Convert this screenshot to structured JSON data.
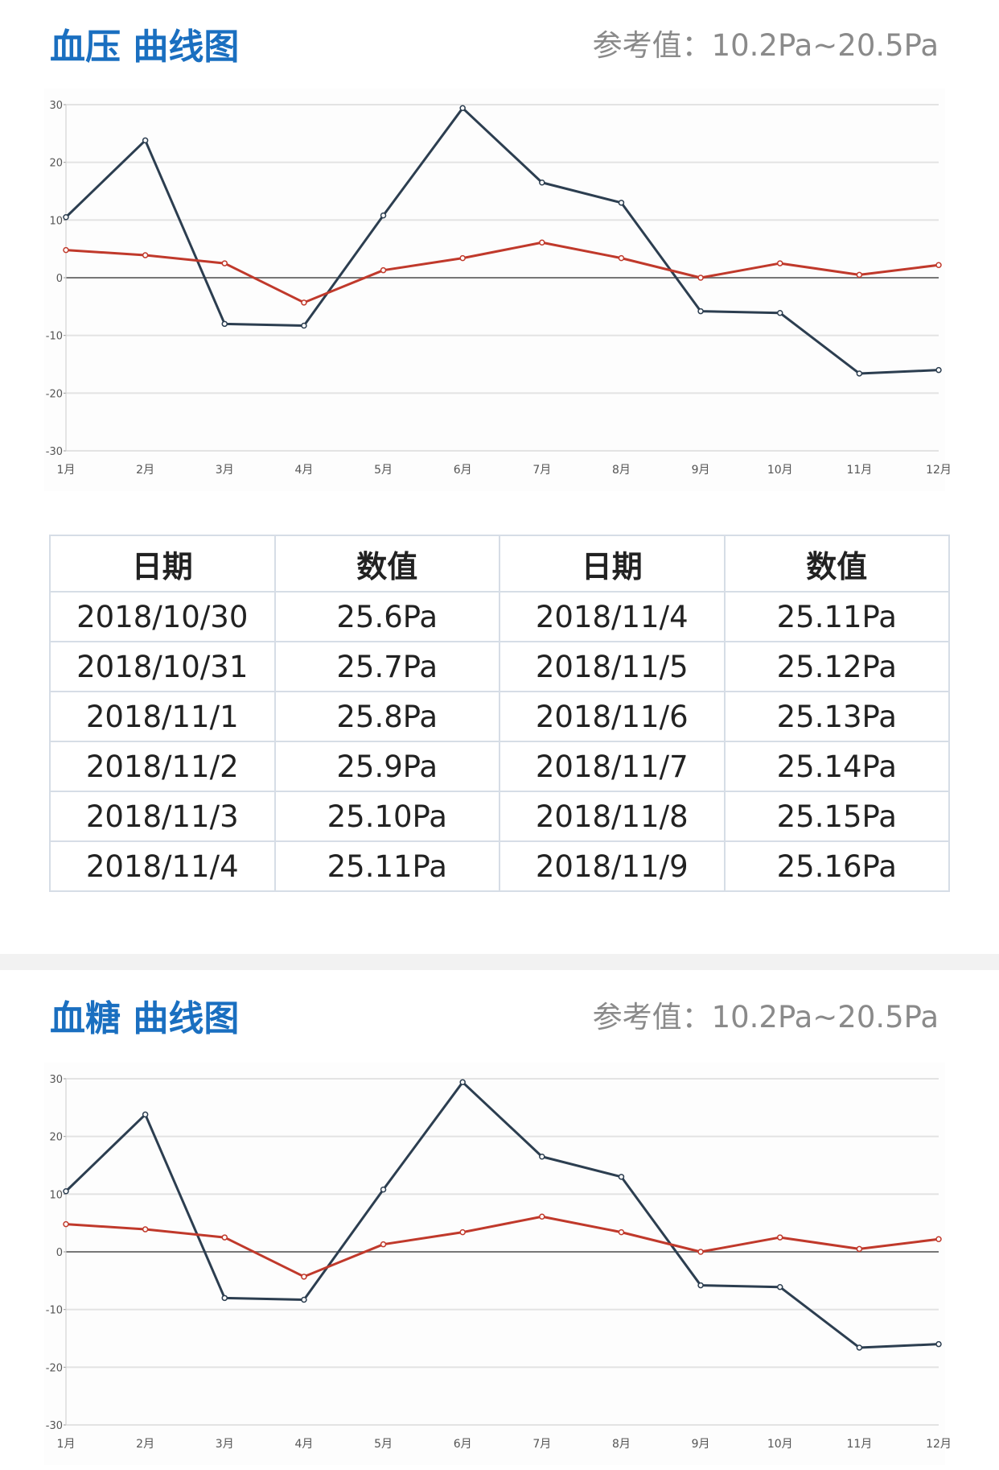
{
  "sections": [
    {
      "title": "血压 曲线图",
      "reference": "参考值：10.2Pa~20.5Pa"
    },
    {
      "title": "血糖 曲线图",
      "reference": "参考值：10.2Pa~20.5Pa"
    }
  ],
  "table": {
    "headers": [
      "日期",
      "数值",
      "日期",
      "数值"
    ],
    "rows": [
      [
        "2018/10/30",
        "25.6Pa",
        "2018/11/4",
        "25.11Pa"
      ],
      [
        "2018/10/31",
        "25.7Pa",
        "2018/11/5",
        "25.12Pa"
      ],
      [
        "2018/11/1",
        "25.8Pa",
        "2018/11/6",
        "25.13Pa"
      ],
      [
        "2018/11/2",
        "25.9Pa",
        "2018/11/7",
        "25.14Pa"
      ],
      [
        "2018/11/3",
        "25.10Pa",
        "2018/11/8",
        "25.15Pa"
      ],
      [
        "2018/11/4",
        "25.11Pa",
        "2018/11/9",
        "25.16Pa"
      ]
    ]
  },
  "chart_data": [
    {
      "type": "line",
      "title": "血压 曲线图",
      "categories": [
        "1月",
        "2月",
        "3月",
        "4月",
        "5月",
        "6月",
        "7月",
        "8月",
        "9月",
        "10月",
        "11月",
        "12月"
      ],
      "yticks": [
        "30",
        "20",
        "10",
        "0",
        "-10",
        "-20",
        "-30"
      ],
      "ylim": [
        -30,
        30
      ],
      "grid": true,
      "series": [
        {
          "color": "#2c3e50",
          "values": [
            10.5,
            23.8,
            -8,
            -8.3,
            10.8,
            29.4,
            16.5,
            13,
            -5.8,
            -6.1,
            -16.6,
            -16
          ]
        },
        {
          "color": "#c0392b",
          "values": [
            4.8,
            3.9,
            2.5,
            -4.3,
            1.3,
            3.4,
            6.1,
            3.4,
            0,
            2.5,
            0.5,
            2.2
          ]
        }
      ]
    },
    {
      "type": "line",
      "title": "血糖 曲线图",
      "categories": [
        "1月",
        "2月",
        "3月",
        "4月",
        "5月",
        "6月",
        "7月",
        "8月",
        "9月",
        "10月",
        "11月",
        "12月"
      ],
      "yticks": [
        "30",
        "20",
        "10",
        "0",
        "-10",
        "-20",
        "-30"
      ],
      "ylim": [
        -30,
        30
      ],
      "grid": true,
      "series": [
        {
          "color": "#2c3e50",
          "values": [
            10.5,
            23.8,
            -8,
            -8.3,
            10.8,
            29.4,
            16.5,
            13,
            -5.8,
            -6.1,
            -16.6,
            -16
          ]
        },
        {
          "color": "#c0392b",
          "values": [
            4.8,
            3.9,
            2.5,
            -4.3,
            1.3,
            3.4,
            6.1,
            3.4,
            0,
            2.5,
            0.5,
            2.2
          ]
        }
      ]
    }
  ]
}
